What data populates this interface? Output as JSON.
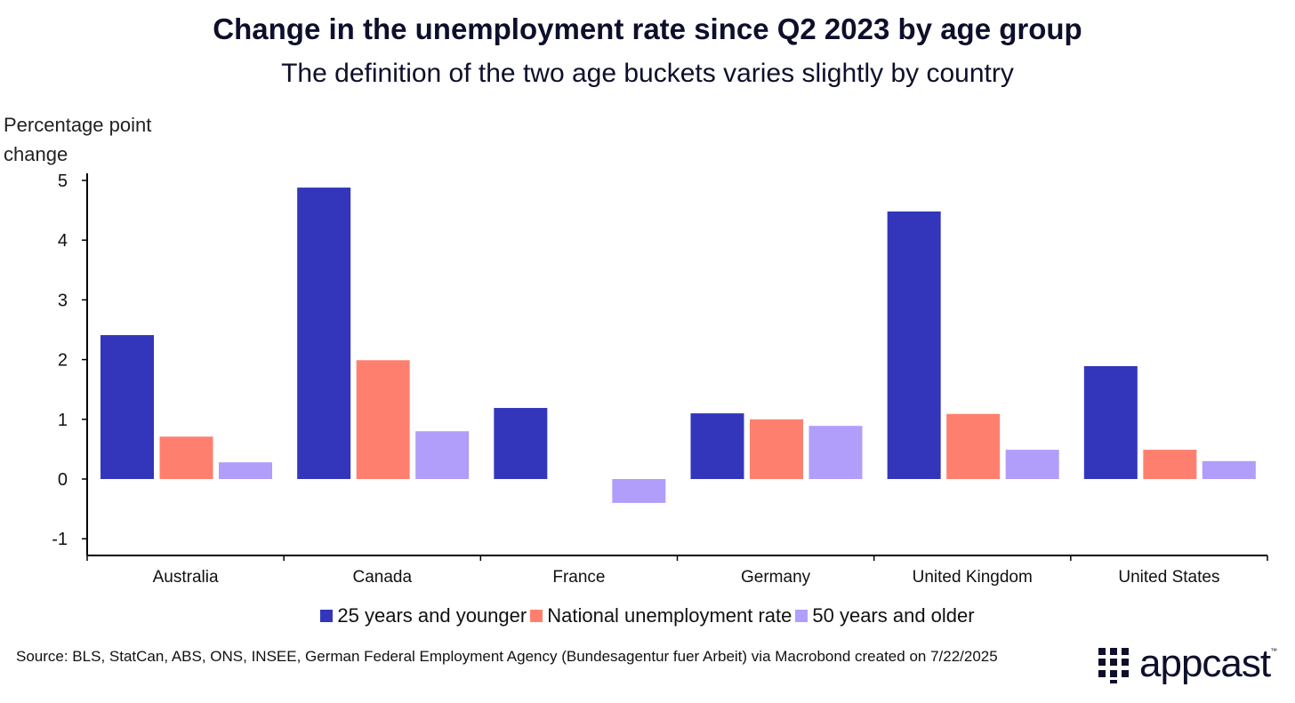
{
  "chart_data": {
    "type": "bar",
    "title": "Change in the unemployment rate since Q2 2023 by age group",
    "subtitle": "The definition of the two age buckets varies slightly by country",
    "ylabel": "Percentage point change",
    "xlabel": "",
    "ylim": [
      -1.2,
      5.2
    ],
    "yticks": [
      5,
      4,
      3,
      2,
      1,
      0,
      -1
    ],
    "categories": [
      "Australia",
      "Canada",
      "France",
      "Germany",
      "United Kingdom",
      "United States"
    ],
    "series": [
      {
        "name": "25 years and younger",
        "color": "#3336bb",
        "values": [
          2.41,
          4.88,
          1.19,
          1.1,
          4.48,
          1.89
        ]
      },
      {
        "name": "National unemployment rate",
        "color": "#ff7f6e",
        "values": [
          0.71,
          1.99,
          0,
          1.0,
          1.09,
          0.49
        ]
      },
      {
        "name": "50 years and older",
        "color": "#b19dfa",
        "values": [
          0.28,
          0.8,
          -0.4,
          0.89,
          0.49,
          0.3
        ]
      }
    ],
    "grid": false,
    "legend_position": "bottom"
  },
  "source": "Source: BLS, StatCan, ABS, ONS, INSEE, German Federal Employment Agency (Bundesagentur fuer Arbeit) via Macrobond created on 7/22/2025",
  "logo": {
    "text": "appcast",
    "tm": "™"
  }
}
